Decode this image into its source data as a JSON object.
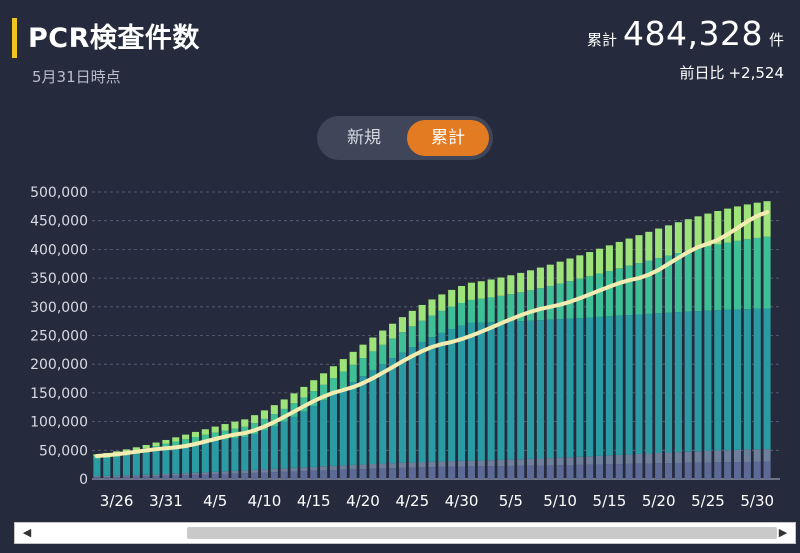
{
  "header": {
    "title": "PCR検査件数",
    "date_note": "5月31日時点",
    "total_label": "累計",
    "total_value": "484,328",
    "total_unit": "件",
    "diff_label": "前日比",
    "diff_value": "+2,524"
  },
  "toggle": {
    "options": [
      "新規",
      "累計"
    ],
    "selected": "累計"
  },
  "colors": {
    "background": "#252a3d",
    "accent": "#f0c420",
    "toggle_active": "#e37b22",
    "line": "#f3ecb0"
  },
  "chart_data": {
    "type": "bar",
    "stacked": true,
    "x_tick_labels": [
      "3/26",
      "3/31",
      "4/5",
      "4/10",
      "4/15",
      "4/20",
      "4/25",
      "4/30",
      "5/5",
      "5/10",
      "5/15",
      "5/20",
      "5/25",
      "5/30"
    ],
    "first_date": "3/24",
    "last_date": "5/31",
    "ylim": [
      0,
      500000
    ],
    "yticks": [
      0,
      50000,
      100000,
      150000,
      200000,
      250000,
      300000,
      350000,
      400000,
      450000,
      500000
    ],
    "y_tick_labels": [
      "0",
      "50,000",
      "100,000",
      "150,000",
      "200,000",
      "250,000",
      "300,000",
      "350,000",
      "400,000",
      "450,000",
      "500,000"
    ],
    "grid": true,
    "series": [
      {
        "color": "#5d6a96",
        "key_points": [
          [
            1,
            3000
          ],
          [
            39,
            22000
          ],
          [
            69,
            30000
          ]
        ]
      },
      {
        "color": "#6e7f9c",
        "key_points": [
          [
            1,
            2000
          ],
          [
            39,
            10000
          ],
          [
            69,
            22000
          ]
        ]
      },
      {
        "color": "#2a9aa3",
        "key_points": [
          [
            1,
            30000
          ],
          [
            16,
            58000
          ],
          [
            39,
            240000
          ],
          [
            69,
            245000
          ]
        ]
      },
      {
        "color": "#3ebf96",
        "key_points": [
          [
            1,
            5000
          ],
          [
            39,
            40000
          ],
          [
            69,
            125000
          ]
        ]
      },
      {
        "color": "#9ee27a",
        "key_points": [
          [
            1,
            3000
          ],
          [
            39,
            30000
          ],
          [
            69,
            62000
          ]
        ]
      }
    ],
    "line": {
      "color": "#f3ecb0",
      "key_points": [
        [
          1,
          40000
        ],
        [
          9,
          55000
        ],
        [
          16,
          80000
        ],
        [
          26,
          155000
        ],
        [
          36,
          235000
        ],
        [
          47,
          300000
        ],
        [
          56,
          350000
        ],
        [
          63,
          410000
        ],
        [
          69,
          465000
        ]
      ]
    }
  }
}
